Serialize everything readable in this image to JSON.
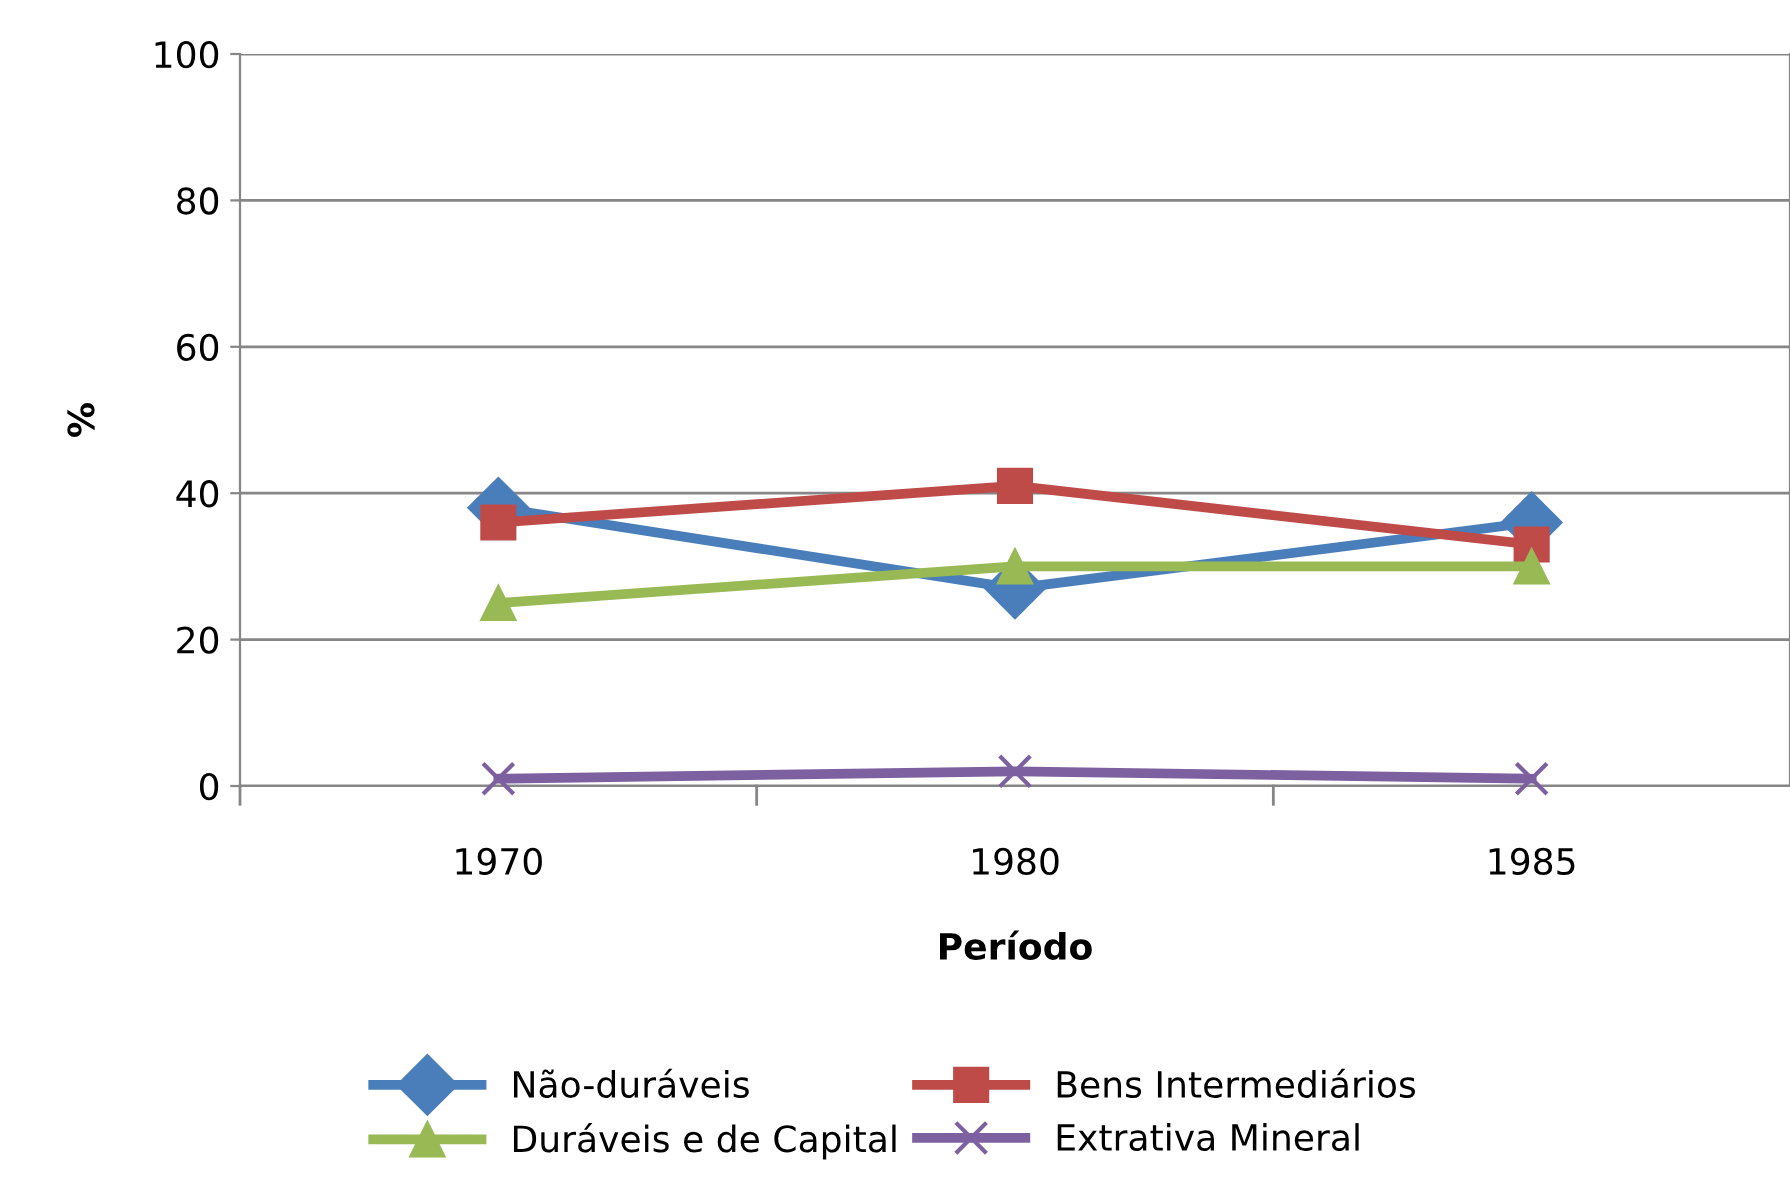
{
  "chart_data": {
    "type": "line",
    "xlabel": "Período",
    "ylabel": "%",
    "categories": [
      "1970",
      "1980",
      "1985"
    ],
    "series": [
      {
        "name": "Não-duráveis",
        "color": "#4a7ebb",
        "values": [
          38,
          27,
          36
        ],
        "marker": "diamond"
      },
      {
        "name": "Bens Intermediários",
        "color": "#be4b48",
        "values": [
          36,
          41,
          33
        ],
        "marker": "square"
      },
      {
        "name": "Duráveis e de Capital",
        "color": "#98b954",
        "values": [
          25,
          30,
          30
        ],
        "marker": "triangle"
      },
      {
        "name": "Extrativa Mineral",
        "color": "#7d60a0",
        "values": [
          1,
          2,
          1
        ],
        "marker": "cross"
      }
    ],
    "ylim": [
      0,
      100
    ],
    "yticks": [
      0,
      20,
      40,
      60,
      80,
      100
    ],
    "grid": "y",
    "legend": "bottom",
    "line_style": "solid"
  }
}
